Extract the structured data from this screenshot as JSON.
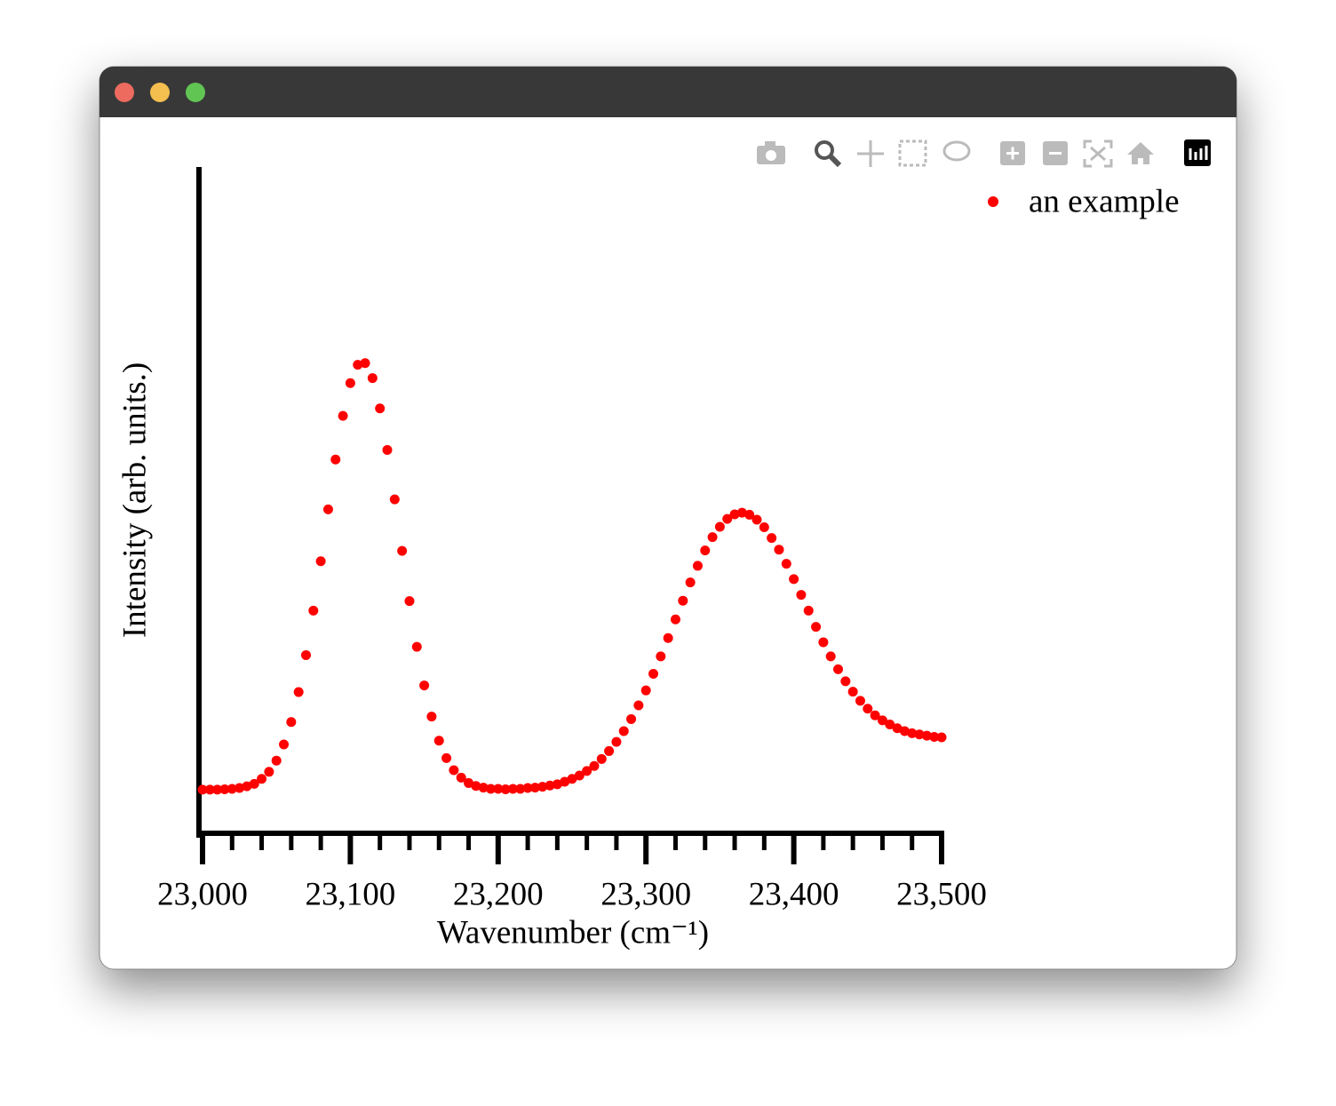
{
  "chart_data": {
    "type": "scatter",
    "xlabel": "Wavenumber (cm⁻¹)",
    "ylabel": "Intensity (arb. units.)",
    "x": [
      23000,
      23005,
      23010,
      23015,
      23020,
      23025,
      23030,
      23035,
      23040,
      23045,
      23050,
      23055,
      23060,
      23065,
      23070,
      23075,
      23080,
      23085,
      23090,
      23095,
      23100,
      23105,
      23110,
      23115,
      23120,
      23125,
      23130,
      23135,
      23140,
      23145,
      23150,
      23155,
      23160,
      23165,
      23170,
      23175,
      23180,
      23185,
      23190,
      23195,
      23200,
      23205,
      23210,
      23215,
      23220,
      23225,
      23230,
      23235,
      23240,
      23245,
      23250,
      23255,
      23260,
      23265,
      23270,
      23275,
      23280,
      23285,
      23290,
      23295,
      23300,
      23305,
      23310,
      23315,
      23320,
      23325,
      23330,
      23335,
      23340,
      23345,
      23350,
      23355,
      23360,
      23365,
      23370,
      23375,
      23380,
      23385,
      23390,
      23395,
      23400,
      23405,
      23410,
      23415,
      23420,
      23425,
      23430,
      23435,
      23440,
      23445,
      23450,
      23455,
      23460,
      23465,
      23470,
      23475,
      23480,
      23485,
      23490,
      23495,
      23500
    ],
    "series": [
      {
        "name": "an example",
        "color": "#ff0000",
        "values": [
          0.105,
          0.105,
          0.105,
          0.106,
          0.107,
          0.109,
          0.113,
          0.119,
          0.131,
          0.148,
          0.175,
          0.214,
          0.268,
          0.34,
          0.429,
          0.536,
          0.655,
          0.78,
          0.9,
          1.005,
          1.084,
          1.128,
          1.132,
          1.096,
          1.023,
          0.923,
          0.804,
          0.68,
          0.559,
          0.449,
          0.356,
          0.281,
          0.223,
          0.181,
          0.152,
          0.134,
          0.121,
          0.114,
          0.11,
          0.107,
          0.107,
          0.106,
          0.107,
          0.107,
          0.109,
          0.11,
          0.112,
          0.115,
          0.118,
          0.124,
          0.131,
          0.139,
          0.15,
          0.162,
          0.179,
          0.198,
          0.22,
          0.246,
          0.275,
          0.308,
          0.344,
          0.384,
          0.426,
          0.47,
          0.515,
          0.56,
          0.604,
          0.644,
          0.681,
          0.713,
          0.738,
          0.757,
          0.768,
          0.772,
          0.767,
          0.755,
          0.737,
          0.711,
          0.683,
          0.649,
          0.612,
          0.574,
          0.536,
          0.497,
          0.46,
          0.426,
          0.395,
          0.366,
          0.341,
          0.319,
          0.3,
          0.284,
          0.272,
          0.262,
          0.253,
          0.246,
          0.241,
          0.238,
          0.235,
          0.232,
          0.231
        ]
      }
    ],
    "xlim": [
      23000,
      23500
    ],
    "ylim": [
      0,
      1.6
    ],
    "xticks": [
      {
        "value": 23000,
        "label": "23,000"
      },
      {
        "value": 23100,
        "label": "23,100"
      },
      {
        "value": 23200,
        "label": "23,200"
      },
      {
        "value": 23300,
        "label": "23,300"
      },
      {
        "value": 23400,
        "label": "23,400"
      },
      {
        "value": 23500,
        "label": "23,500"
      }
    ],
    "xminorticks": [
      23020,
      23040,
      23060,
      23080,
      23120,
      23140,
      23160,
      23180,
      23220,
      23240,
      23260,
      23280,
      23320,
      23340,
      23360,
      23380,
      23420,
      23440,
      23460,
      23480
    ],
    "legend": "top-right"
  }
}
